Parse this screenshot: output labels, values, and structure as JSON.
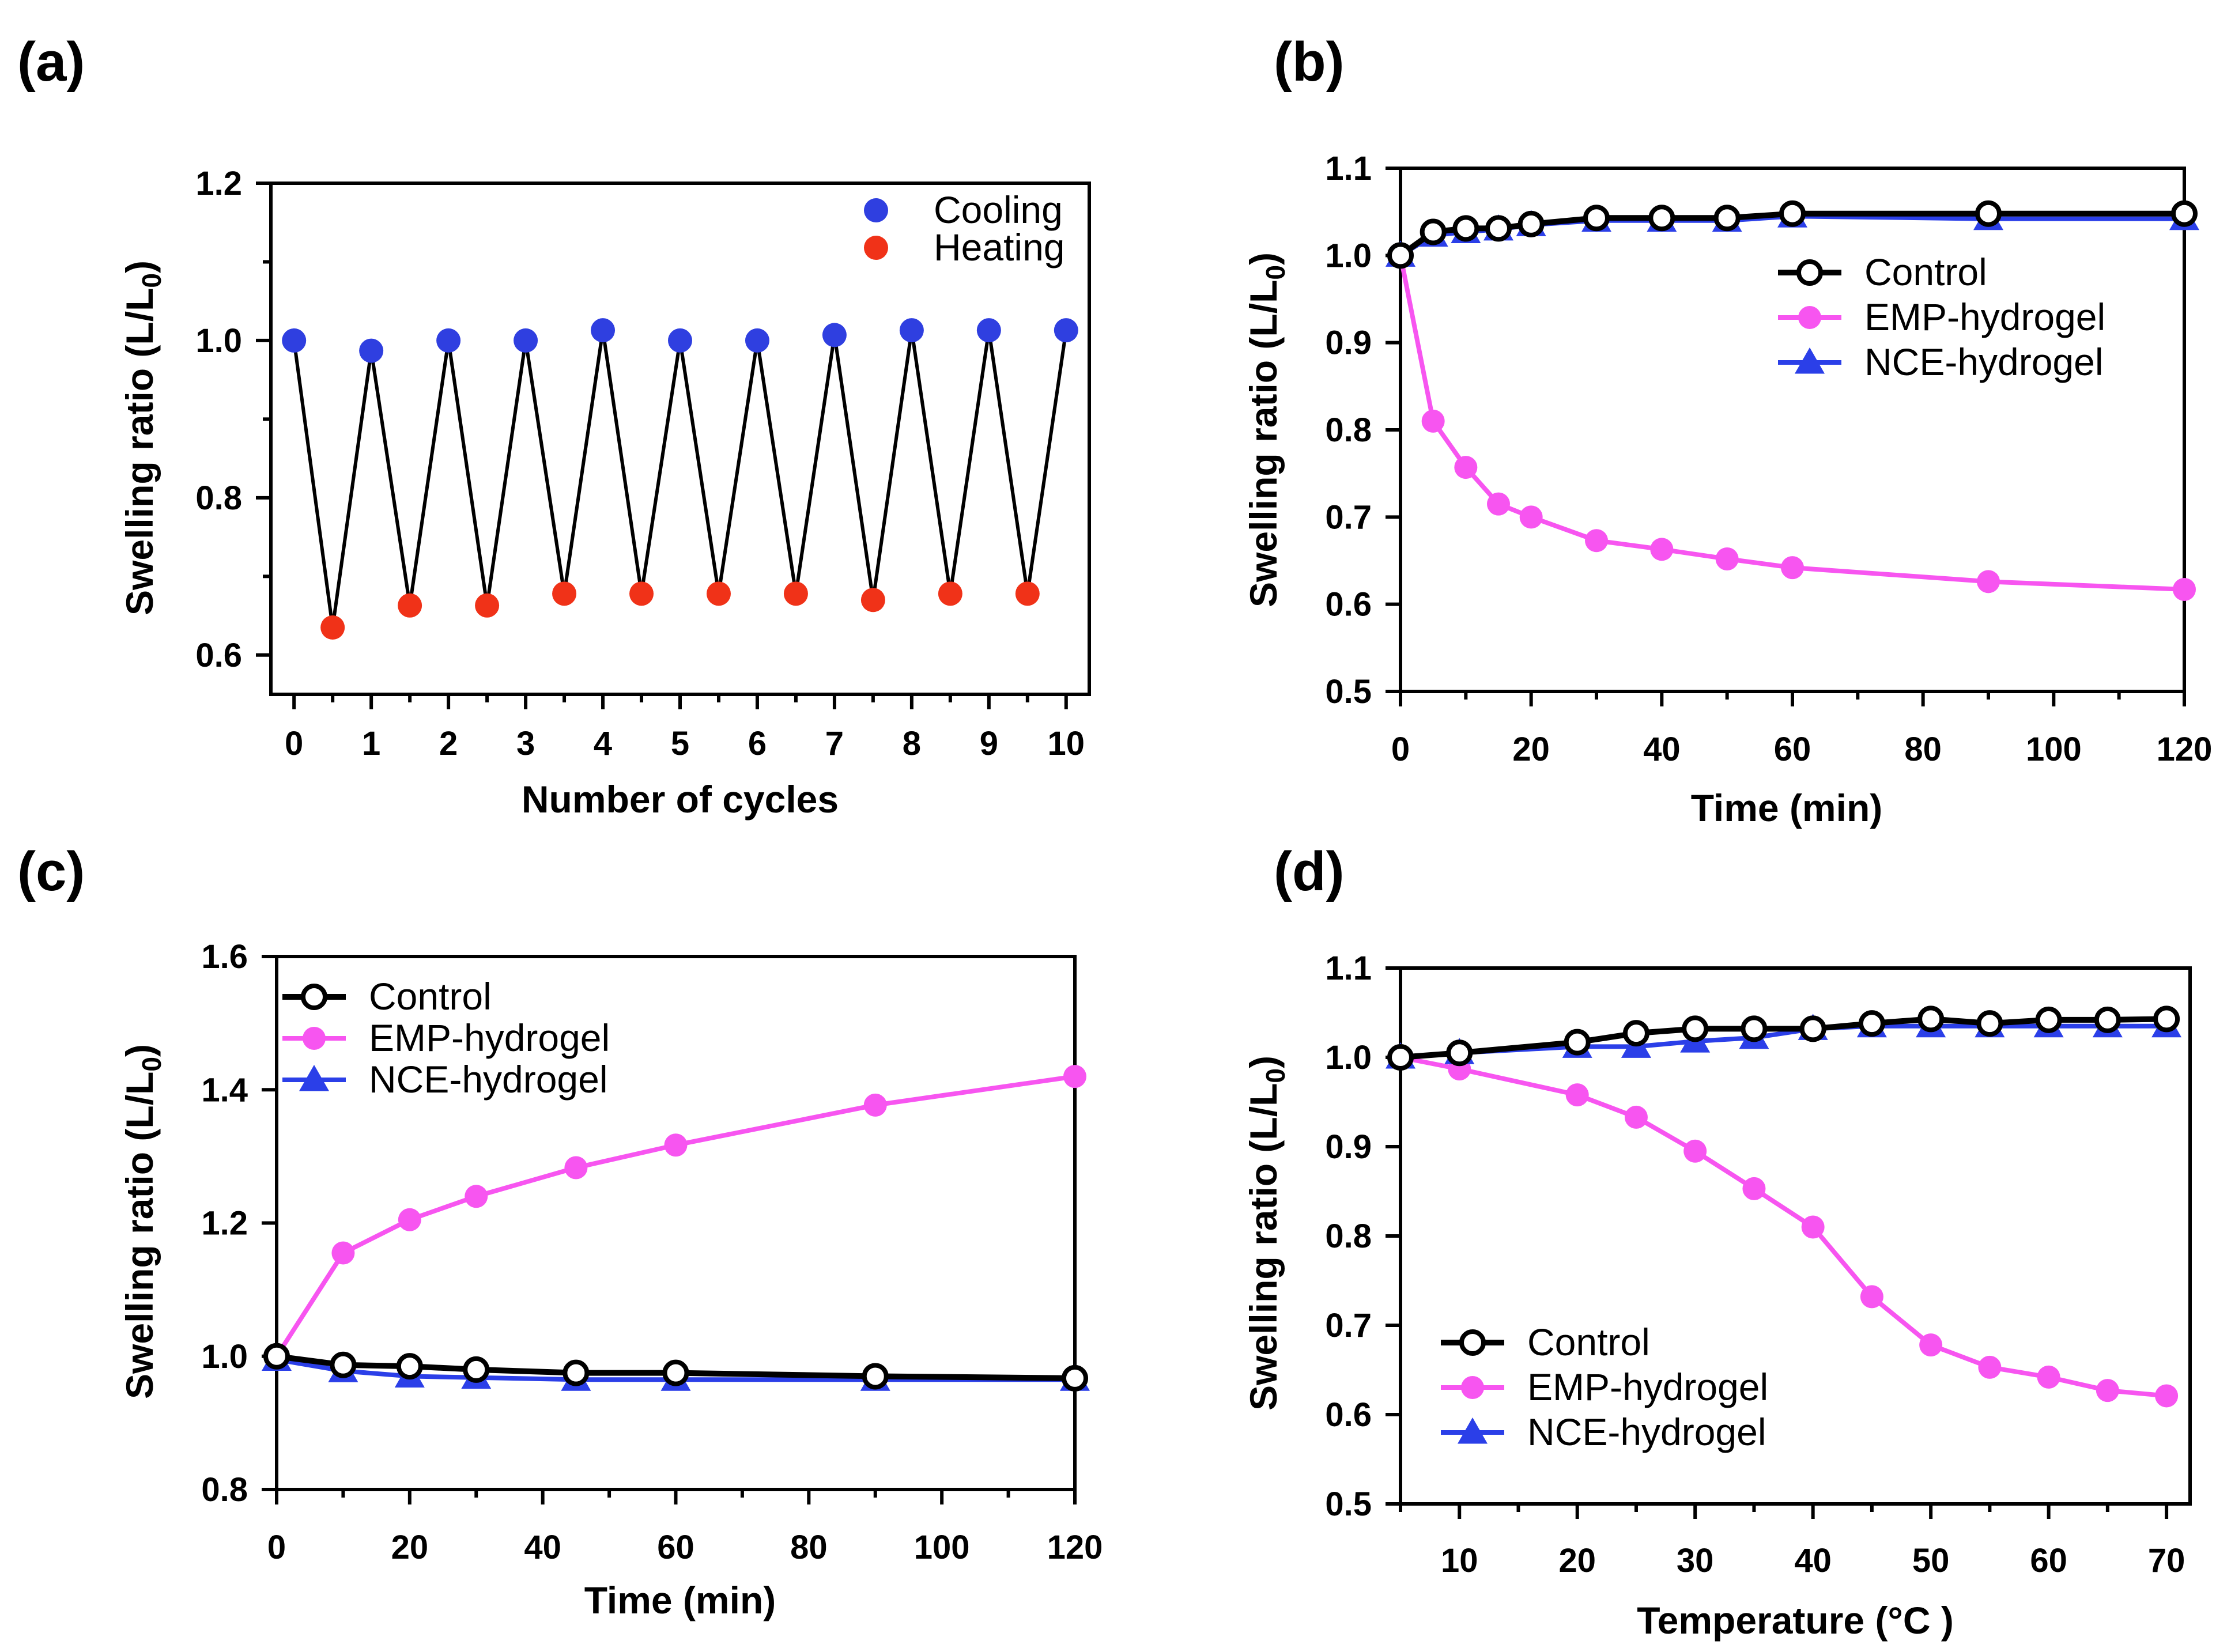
{
  "chart_data": [
    {
      "panel": "(a)",
      "type": "scatter",
      "xlabel": "Number of cycles",
      "ylabel": "Swelling ratio (L/L0)",
      "xlim": [
        -0.3,
        10.3
      ],
      "ylim": [
        0.55,
        1.2
      ],
      "xticks": [
        0,
        1,
        2,
        3,
        4,
        5,
        6,
        7,
        8,
        9,
        10
      ],
      "yticks": [
        0.6,
        0.8,
        1.0,
        1.2
      ],
      "ytick_labels": [
        "0.6",
        "0.8",
        "1.0",
        "1.2"
      ],
      "legend_position": "top-right",
      "zigzag_line": {
        "x": [
          0,
          0.5,
          1,
          1.5,
          2,
          2.5,
          3,
          3.5,
          4,
          4.5,
          5,
          5.5,
          6,
          6.5,
          7,
          7.5,
          8,
          8.5,
          9,
          9.5,
          10
        ],
        "y": [
          1.0,
          0.635,
          0.987,
          0.663,
          1.0,
          0.663,
          1.0,
          0.678,
          1.013,
          0.678,
          1.0,
          0.678,
          1.0,
          0.678,
          1.007,
          0.67,
          1.013,
          0.678,
          1.013,
          0.678,
          1.013
        ]
      },
      "series": [
        {
          "name": "Cooling",
          "color": "#2f3fe0",
          "x": [
            0,
            1,
            2,
            3,
            4,
            5,
            6,
            7,
            8,
            9,
            10
          ],
          "y": [
            1.0,
            0.987,
            1.0,
            1.0,
            1.013,
            1.0,
            1.0,
            1.007,
            1.013,
            1.013,
            1.013
          ]
        },
        {
          "name": "Heating",
          "color": "#f03218",
          "x": [
            0.5,
            1.5,
            2.5,
            3.5,
            4.5,
            5.5,
            6.5,
            7.5,
            8.5,
            9.5
          ],
          "y": [
            0.635,
            0.663,
            0.663,
            0.678,
            0.678,
            0.678,
            0.678,
            0.67,
            0.678,
            0.678
          ]
        }
      ]
    },
    {
      "panel": "(b)",
      "type": "line",
      "xlabel": "Time (min)",
      "ylabel": "Swelling ratio (L/L0)",
      "xlim": [
        0,
        120
      ],
      "ylim": [
        0.5,
        1.1
      ],
      "xticks": [
        0,
        20,
        40,
        60,
        80,
        100,
        120
      ],
      "yticks": [
        0.5,
        0.6,
        0.7,
        0.8,
        0.9,
        1.0,
        1.1
      ],
      "ytick_labels": [
        "0.5",
        "0.6",
        "0.7",
        "0.8",
        "0.9",
        "1.0",
        "1.1"
      ],
      "legend_position": "center-right",
      "series": [
        {
          "name": "EMP-hydrogel",
          "color": "#f755f0",
          "marker": "circle",
          "x": [
            0,
            5,
            10,
            15,
            20,
            30,
            40,
            50,
            60,
            90,
            120
          ],
          "y": [
            1.0,
            0.81,
            0.757,
            0.715,
            0.7,
            0.673,
            0.663,
            0.652,
            0.642,
            0.626,
            0.617
          ]
        },
        {
          "name": "NCE-hydrogel",
          "color": "#2b3fe8",
          "marker": "triangle",
          "x": [
            0,
            5,
            10,
            15,
            20,
            30,
            40,
            50,
            60,
            90,
            120
          ],
          "y": [
            1.0,
            1.023,
            1.027,
            1.03,
            1.035,
            1.04,
            1.04,
            1.04,
            1.045,
            1.042,
            1.042
          ]
        },
        {
          "name": "Control",
          "color": "#000000",
          "marker": "open-circle",
          "x": [
            0,
            5,
            10,
            15,
            20,
            30,
            40,
            50,
            60,
            90,
            120
          ],
          "y": [
            1.0,
            1.027,
            1.031,
            1.031,
            1.036,
            1.043,
            1.043,
            1.043,
            1.048,
            1.048,
            1.048
          ]
        }
      ]
    },
    {
      "panel": "(c)",
      "type": "line",
      "xlabel": "Time (min)",
      "ylabel": "Swelling ratio (L/L0)",
      "xlim": [
        0,
        120
      ],
      "ylim": [
        0.8,
        1.6
      ],
      "xticks": [
        0,
        20,
        40,
        60,
        80,
        100,
        120
      ],
      "yticks": [
        0.8,
        1.0,
        1.2,
        1.4,
        1.6
      ],
      "ytick_labels": [
        "0.8",
        "1.0",
        "1.2",
        "1.4",
        "1.6"
      ],
      "legend_position": "top-left",
      "series": [
        {
          "name": "EMP-hydrogel",
          "color": "#f755f0",
          "marker": "circle",
          "x": [
            0,
            10,
            20,
            30,
            45,
            60,
            90,
            120
          ],
          "y": [
            1.0,
            1.155,
            1.205,
            1.24,
            1.283,
            1.317,
            1.377,
            1.42
          ]
        },
        {
          "name": "NCE-hydrogel",
          "color": "#2b3fe8",
          "marker": "triangle",
          "x": [
            0,
            10,
            20,
            30,
            45,
            60,
            90,
            120
          ],
          "y": [
            0.995,
            0.978,
            0.97,
            0.968,
            0.965,
            0.965,
            0.965,
            0.965
          ]
        },
        {
          "name": "Control",
          "color": "#000000",
          "marker": "open-circle",
          "x": [
            0,
            10,
            20,
            30,
            45,
            60,
            90,
            120
          ],
          "y": [
            1.0,
            0.987,
            0.985,
            0.98,
            0.975,
            0.975,
            0.97,
            0.967
          ]
        }
      ]
    },
    {
      "panel": "(d)",
      "type": "line",
      "xlabel": "Temperature (°C )",
      "ylabel": "Swelling ratio (L/L0)",
      "xlim": [
        5,
        72
      ],
      "ylim": [
        0.5,
        1.1
      ],
      "xticks": [
        10,
        20,
        30,
        40,
        50,
        60,
        70
      ],
      "yticks": [
        0.5,
        0.6,
        0.7,
        0.8,
        0.9,
        1.0,
        1.1
      ],
      "ytick_labels": [
        "0.5",
        "0.6",
        "0.7",
        "0.8",
        "0.9",
        "1.0",
        "1.1"
      ],
      "legend_position": "bottom-left",
      "series": [
        {
          "name": "EMP-hydrogel",
          "color": "#f755f0",
          "marker": "circle",
          "x": [
            5,
            10,
            20,
            25,
            30,
            35,
            40,
            45,
            50,
            55,
            60,
            65,
            70
          ],
          "y": [
            1.0,
            0.987,
            0.958,
            0.933,
            0.895,
            0.853,
            0.81,
            0.732,
            0.678,
            0.653,
            0.642,
            0.627,
            0.621
          ]
        },
        {
          "name": "NCE-hydrogel",
          "color": "#2b3fe8",
          "marker": "triangle",
          "x": [
            5,
            10,
            20,
            25,
            30,
            35,
            40,
            45,
            50,
            55,
            60,
            65,
            70
          ],
          "y": [
            1.0,
            1.005,
            1.012,
            1.012,
            1.018,
            1.022,
            1.032,
            1.035,
            1.035,
            1.035,
            1.035,
            1.035,
            1.035
          ]
        },
        {
          "name": "Control",
          "color": "#000000",
          "marker": "open-circle",
          "x": [
            5,
            10,
            20,
            25,
            30,
            35,
            40,
            45,
            50,
            55,
            60,
            65,
            70
          ],
          "y": [
            1.0,
            1.005,
            1.017,
            1.027,
            1.032,
            1.032,
            1.032,
            1.038,
            1.043,
            1.038,
            1.042,
            1.042,
            1.043
          ]
        }
      ]
    }
  ]
}
